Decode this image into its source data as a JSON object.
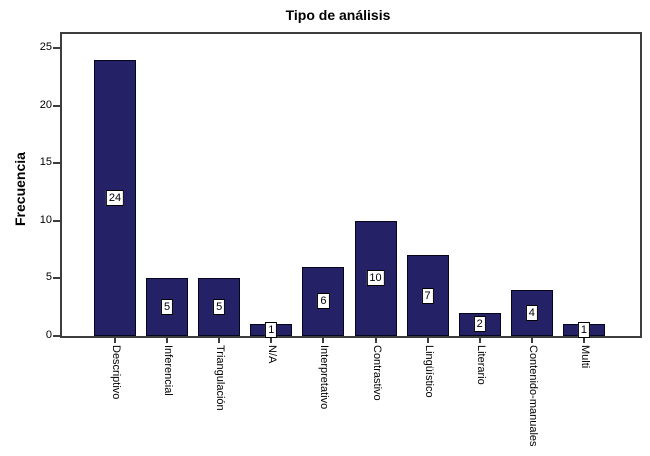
{
  "window": {
    "background": "#ffffff"
  },
  "chart_data": {
    "type": "bar",
    "title": "Tipo de análisis",
    "ylabel": "Frecuencia",
    "xlabel": "",
    "categories": [
      "Descriptivo",
      "Inferencial",
      "Triangulación",
      "N/A",
      "Interpretativo",
      "Contrastivo",
      "Lingüístico",
      "Literario",
      "Contenido-manuales",
      "Multi"
    ],
    "values": [
      24,
      5,
      5,
      1,
      6,
      10,
      7,
      2,
      4,
      1
    ],
    "yticks": [
      0,
      5,
      10,
      15,
      20,
      25
    ],
    "ylim": [
      0,
      26.4
    ],
    "grid": false,
    "legend": "none",
    "value_labels_shown": true,
    "value_label_style": "white box with black border centered in bar",
    "x_label_rotation_deg": 90,
    "bar_color": "#252166",
    "bar_border_color": "#06051e",
    "frame_color": "#3d3d3d",
    "text_color": "#000000"
  }
}
